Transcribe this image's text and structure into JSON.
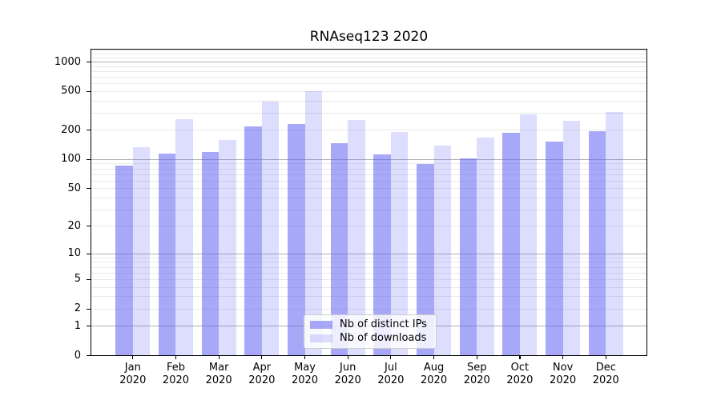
{
  "title": "RNAseq123 2020",
  "chart_data": {
    "type": "bar",
    "title": "RNAseq123 2020",
    "categories": [
      "Jan 2020",
      "Feb 2020",
      "Mar 2020",
      "Apr 2020",
      "May 2020",
      "Jun 2020",
      "Jul 2020",
      "Aug 2020",
      "Sep 2020",
      "Oct 2020",
      "Nov 2020",
      "Dec 2020"
    ],
    "series": [
      {
        "name": "Nb of distinct IPs",
        "color": "#6464f5",
        "alpha": 0.56,
        "values": [
          87,
          114,
          120,
          218,
          230,
          147,
          113,
          89,
          103,
          187,
          152,
          194
        ]
      },
      {
        "name": "Nb of downloads",
        "color": "#6464f5",
        "alpha": 0.22,
        "values": [
          134,
          261,
          158,
          393,
          505,
          256,
          193,
          138,
          167,
          289,
          248,
          309
        ]
      }
    ],
    "xlabel": "",
    "ylabel": "",
    "yscale": "log1p",
    "ylim": [
      0,
      1400
    ],
    "y_ticks": [
      0,
      1,
      2,
      5,
      10,
      20,
      50,
      100,
      200,
      500,
      1000
    ],
    "grid": {
      "on": true,
      "orientation": "horizontal",
      "major_lines": [
        1,
        10,
        100,
        1000
      ],
      "minor_lines": [
        2,
        3,
        4,
        5,
        6,
        7,
        8,
        9,
        20,
        30,
        40,
        50,
        60,
        70,
        80,
        90,
        200,
        300,
        400,
        500,
        600,
        700,
        800,
        900,
        1100,
        1200,
        1300
      ],
      "major_color": "#b0b0b0",
      "minor_color": "#e9e9e9"
    },
    "legend": {
      "position": "lower-center"
    }
  }
}
